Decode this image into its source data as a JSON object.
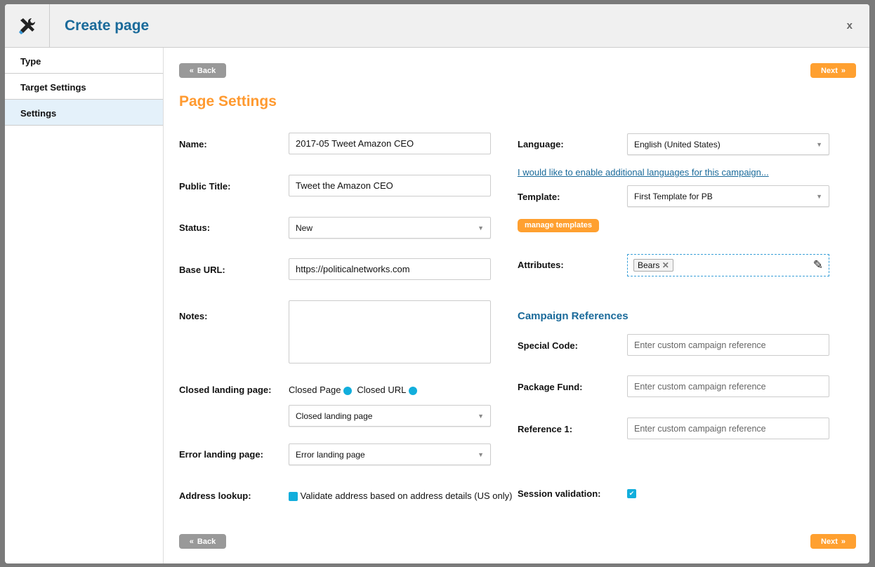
{
  "header": {
    "title": "Create page",
    "close_label": "x"
  },
  "sidebar": {
    "items": [
      {
        "label": "Type"
      },
      {
        "label": "Target Settings"
      },
      {
        "label": "Settings",
        "active": true
      }
    ]
  },
  "nav": {
    "back_label": "Back",
    "next_label": "Next"
  },
  "main": {
    "section_title": "Page Settings",
    "name": {
      "label": "Name:",
      "value": "2017-05 Tweet Amazon CEO"
    },
    "public_title": {
      "label": "Public Title:",
      "value": "Tweet the Amazon CEO"
    },
    "status": {
      "label": "Status:",
      "value": "New"
    },
    "base_url": {
      "label": "Base URL:",
      "value": "https://politicalnetworks.com"
    },
    "notes": {
      "label": "Notes:",
      "value": ""
    },
    "closed_landing": {
      "label": "Closed landing page:",
      "option1": "Closed Page",
      "option2": "Closed URL",
      "select_value": "Closed landing page"
    },
    "error_landing": {
      "label": "Error landing page:",
      "value": "Error landing page"
    },
    "address_lookup": {
      "label": "Address lookup:",
      "checkbox_label": "Validate address based on address details (US only)"
    },
    "language": {
      "label": "Language:",
      "value": "English (United States)",
      "link": "I would like to enable additional languages for this campaign..."
    },
    "template": {
      "label": "Template:",
      "value": "First Template for PB",
      "manage_label": "manage templates"
    },
    "attributes": {
      "label": "Attributes:",
      "tags": [
        "Bears"
      ]
    },
    "campaign_refs": {
      "title": "Campaign References",
      "placeholder": "Enter custom campaign reference",
      "fields": [
        {
          "label": "Special Code:"
        },
        {
          "label": "Package Fund:"
        },
        {
          "label": "Reference 1:"
        }
      ]
    },
    "session_validation": {
      "label": "Session validation:",
      "checked": true
    }
  },
  "colors": {
    "accent": "#ffa030",
    "primary": "#1a6a9a",
    "check": "#12aedc"
  }
}
